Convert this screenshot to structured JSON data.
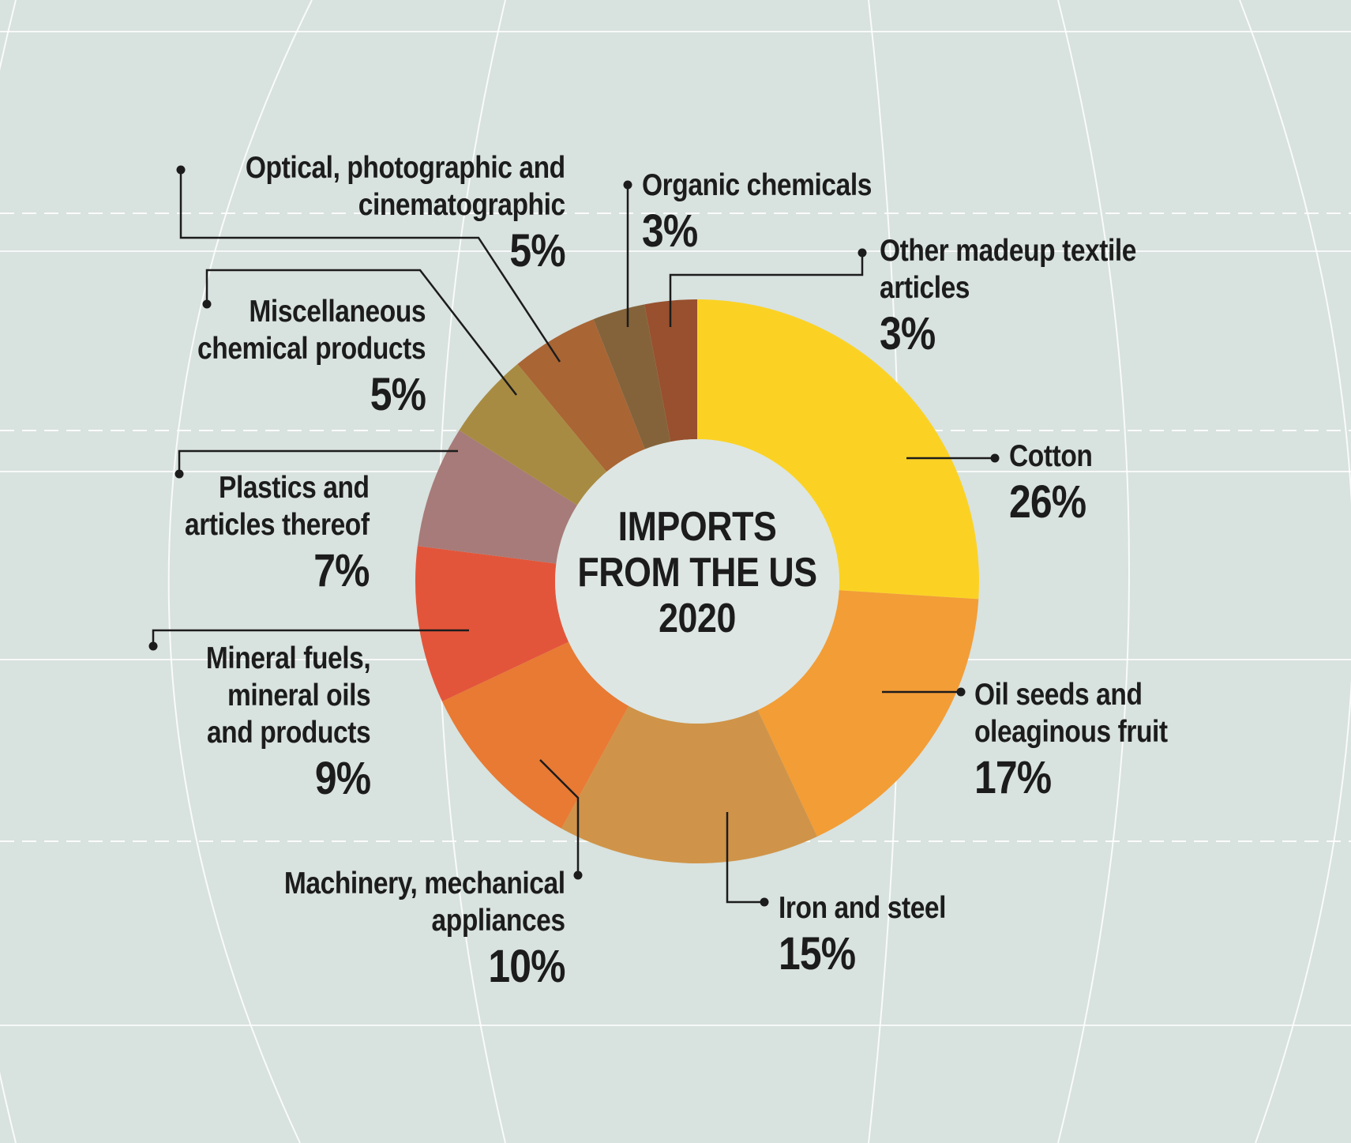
{
  "chart_data": {
    "type": "pie",
    "variant": "donut",
    "title_lines": [
      "IMPORTS",
      "FROM THE US",
      "2020"
    ],
    "categories": [
      "Cotton",
      "Oil seeds and oleaginous fruit",
      "Iron and steel",
      "Machinery, mechanical appliances",
      "Mineral fuels, mineral oils and products",
      "Plastics and articles thereof",
      "Miscellaneous chemical products",
      "Optical, photographic and cinematographic",
      "Organic chemicals",
      "Other madeup textile articles"
    ],
    "values": [
      26,
      17,
      15,
      10,
      9,
      7,
      5,
      5,
      3,
      3
    ],
    "value_labels": [
      "26%",
      "17%",
      "15%",
      "10%",
      "9%",
      "7%",
      "5%",
      "5%",
      "3%",
      "3%"
    ],
    "label_lines": [
      [
        "Cotton"
      ],
      [
        "Oil seeds and",
        "oleaginous fruit"
      ],
      [
        "Iron and steel"
      ],
      [
        "Machinery, mechanical",
        "appliances"
      ],
      [
        "Mineral fuels,",
        "mineral oils",
        "and products"
      ],
      [
        "Plastics and",
        "articles thereof"
      ],
      [
        "Miscellaneous",
        "chemical products"
      ],
      [
        "Optical, photographic and",
        "cinematographic"
      ],
      [
        "Organic chemicals"
      ],
      [
        "Other madeup textile",
        "articles"
      ]
    ],
    "colors": [
      "#fbd224",
      "#f39d36",
      "#cf9449",
      "#e87a34",
      "#e3553a",
      "#a77b79",
      "#a88b42",
      "#a96534",
      "#85633a",
      "#98502e"
    ],
    "legend": "none"
  },
  "theme": {
    "background": "#d8e2df",
    "gridline": "#ffffff",
    "leader": "#1c1c1c",
    "text": "#1c1c1c",
    "center_fill": "#dde6e3"
  }
}
